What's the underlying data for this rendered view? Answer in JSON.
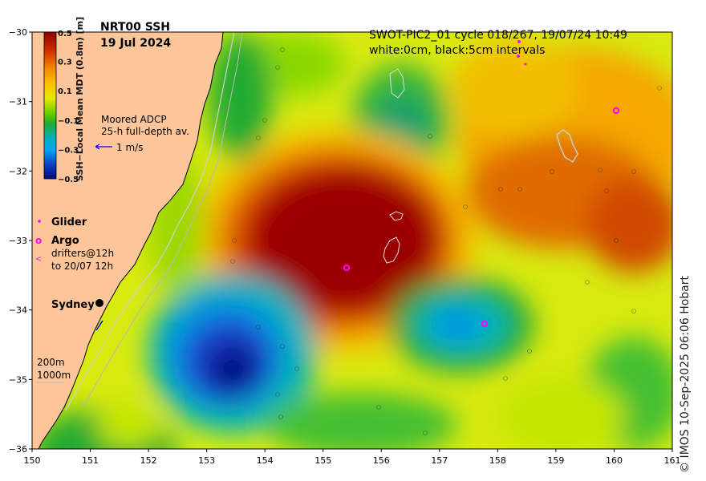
{
  "title": {
    "line1": "NRT00 SSH",
    "line2": "19 Jul 2024"
  },
  "swot": {
    "line1": "SWOT-PIC2_01 cycle 018/267, 19/07/24 10:49",
    "line2": "white:0cm, black:5cm intervals"
  },
  "colorbar": {
    "label": "SSH−Local Mean MDT (0.8m) [m]",
    "ticks": [
      "0.5",
      "0.3",
      "0.1",
      "−0.1",
      "−0.3",
      "−0.5"
    ]
  },
  "adcp": {
    "line1": "Moored ADCP",
    "line2": "25-h full-depth av.",
    "scale": "1 m/s"
  },
  "legend": {
    "glider": "Glider",
    "argo": "Argo",
    "drifters1": "drifters@12h",
    "drifters2": "to 20/07 12h"
  },
  "place": "Sydney",
  "isobaths": {
    "a": "200m",
    "b": "1000m"
  },
  "axes": {
    "lat_ticks": [
      "−30",
      "−31",
      "−32",
      "−33",
      "−34",
      "−35",
      "−36"
    ],
    "lon_ticks": [
      "150",
      "151",
      "152",
      "153",
      "154",
      "155",
      "156",
      "157",
      "158",
      "159",
      "160",
      "161"
    ],
    "lat_range": [
      -36,
      -30
    ],
    "lon_range": [
      150,
      161
    ]
  },
  "credit": "© IMOS 10-Sep-2025 06:06 Hobart",
  "colors": {
    "land": "#fcc69a",
    "ssh_high": "#9b0000",
    "ssh_mid": "#f4d400",
    "ssh_zero": "#3cbc2c",
    "ssh_low": "#000a8c",
    "glider": "#ff00ff",
    "adcp_arrow": "#0000ff"
  }
}
